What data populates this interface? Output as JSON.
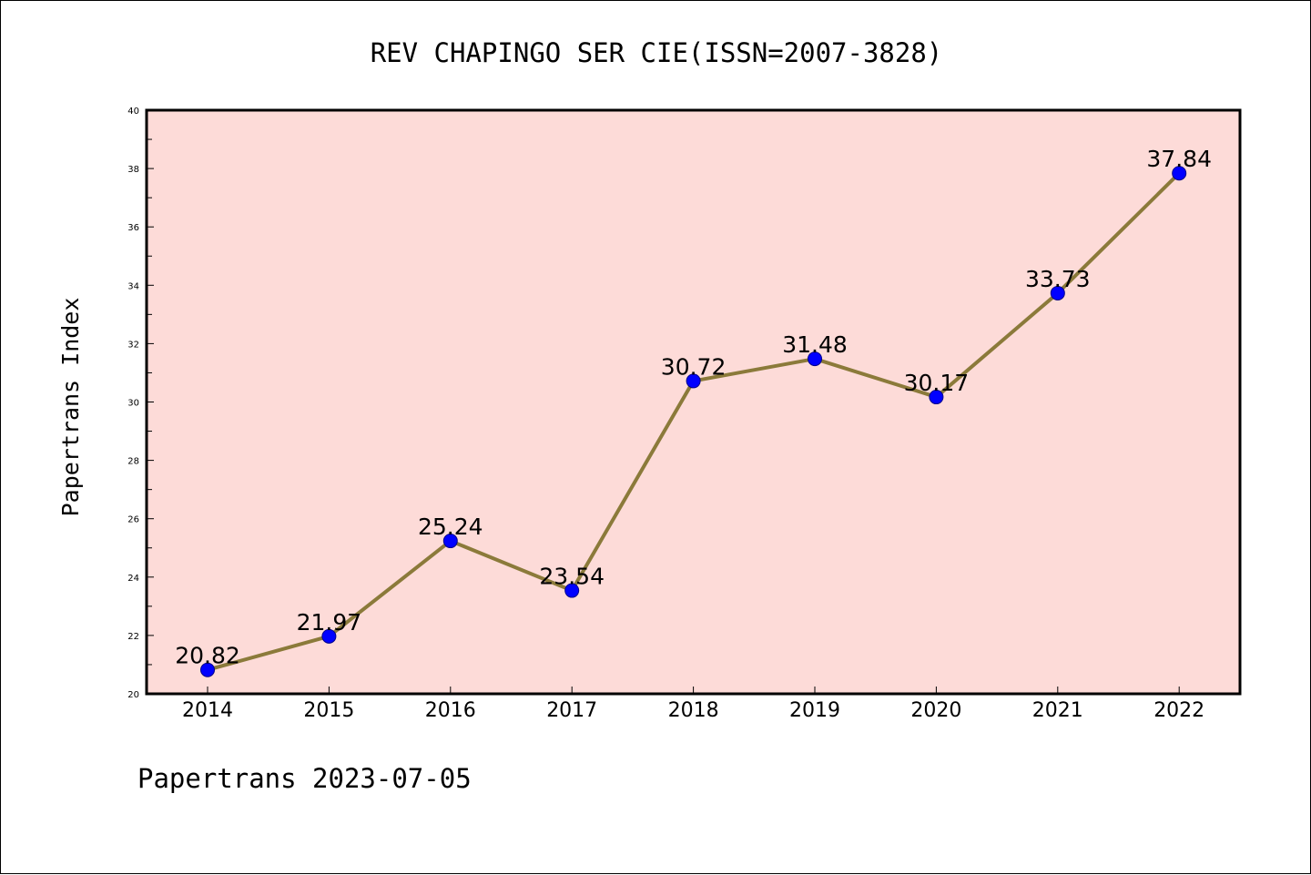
{
  "chart_data": {
    "type": "line",
    "title": "REV CHAPINGO SER CIE(ISSN=2007-3828)",
    "ylabel": "Papertrans Index",
    "xlabel": "",
    "footer": "Papertrans 2023-07-05",
    "categories": [
      "2014",
      "2015",
      "2016",
      "2017",
      "2018",
      "2019",
      "2020",
      "2021",
      "2022"
    ],
    "values": [
      20.82,
      21.97,
      25.24,
      23.54,
      30.72,
      31.48,
      30.17,
      33.73,
      37.84
    ],
    "data_labels": [
      "20.82",
      "21.97",
      "25.24",
      "23.54",
      "30.72",
      "31.48",
      "30.17",
      "33.73",
      "37.84"
    ],
    "ylim": [
      20,
      40
    ],
    "yticks": [
      "20",
      "22",
      "24",
      "26",
      "28",
      "30",
      "32",
      "34",
      "36",
      "38",
      "40"
    ],
    "grid": false,
    "legend": "none",
    "colors": {
      "plot_background": "#fddbd8",
      "line": "#8b7a3a",
      "marker": "#0000ff"
    }
  }
}
